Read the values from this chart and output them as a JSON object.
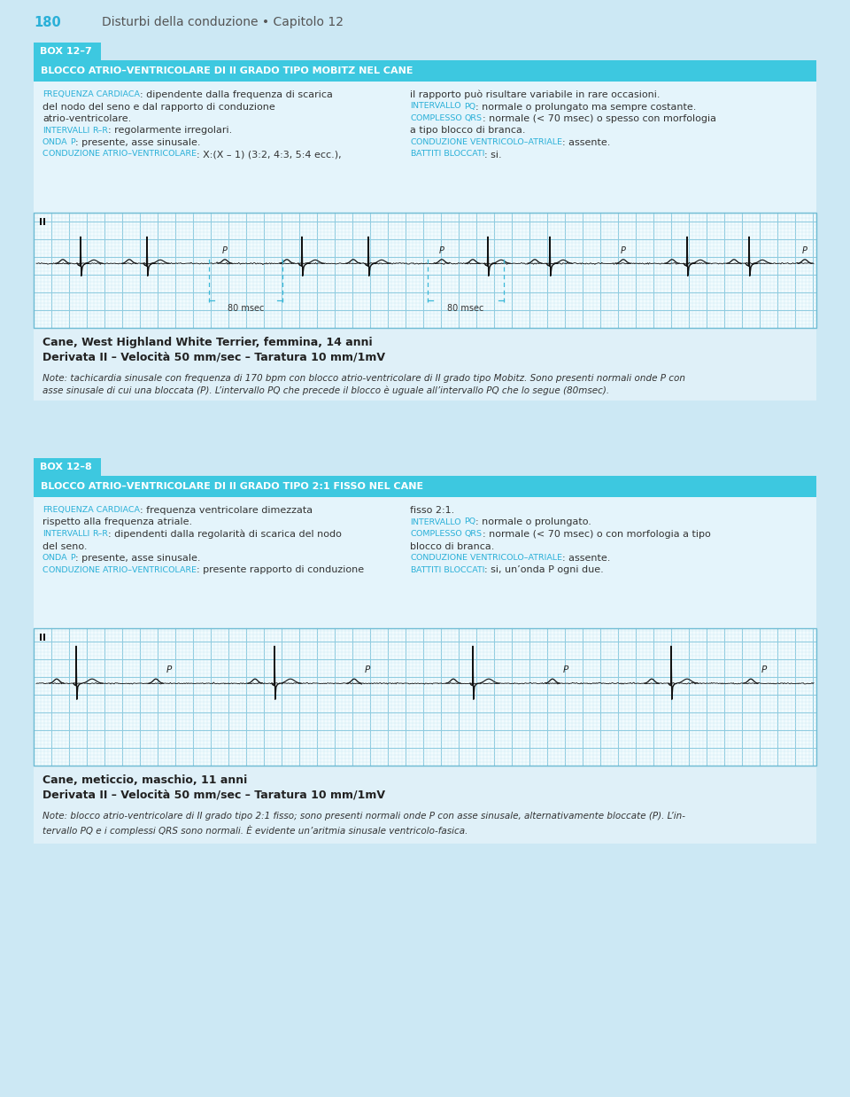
{
  "page_num": "180",
  "page_title": "Disturbi della conduzione • Capitolo 12",
  "bg_color": "#cce8f4",
  "box1": {
    "tag": "BOX 12–7",
    "tag_bg": "#3dc8e0",
    "header": "BLOCCO ATRIO–VENTRICOLARE DI II GRADO TIPO MOBITZ NEL CANE",
    "header_bg": "#3dc8e0",
    "content_bg": "#e4f4fb",
    "left_col_lines": [
      [
        {
          "t": "F",
          "sc": true,
          "c": "#2ab0d8"
        },
        {
          "t": "REQUENZA CARDIACA",
          "sc": true,
          "c": "#2ab0d8"
        },
        {
          "t": ": dipendente dalla frequenza di scarica",
          "c": "#333333"
        }
      ],
      [
        {
          "t": "del nodo del seno e dal rapporto di conduzione",
          "c": "#333333"
        }
      ],
      [
        {
          "t": "atrio-ventricolare.",
          "c": "#333333"
        }
      ],
      [
        {
          "t": "I",
          "sc": true,
          "c": "#2ab0d8"
        },
        {
          "t": "NTERVALLI ",
          "sc": true,
          "c": "#2ab0d8"
        },
        {
          "t": "R–R",
          "sc": true,
          "c": "#2ab0d8"
        },
        {
          "t": ": regolarmente irregolari.",
          "c": "#333333"
        }
      ],
      [
        {
          "t": "O",
          "sc": true,
          "c": "#2ab0d8"
        },
        {
          "t": "NDA ",
          "sc": true,
          "c": "#2ab0d8"
        },
        {
          "t": "P",
          "sc": true,
          "c": "#2ab0d8"
        },
        {
          "t": ": presente, asse sinusale.",
          "c": "#333333"
        }
      ],
      [
        {
          "t": "C",
          "sc": true,
          "c": "#2ab0d8"
        },
        {
          "t": "ONDUZIONE ATRIO–VENTRICOLARE",
          "sc": true,
          "c": "#2ab0d8"
        },
        {
          "t": ": X:(X – 1) (3:2, 4:3, 5:4 ecc.),",
          "c": "#333333"
        }
      ]
    ],
    "right_col_lines": [
      [
        {
          "t": "il rapporto può risultare variabile in rare occasioni.",
          "c": "#333333"
        }
      ],
      [
        {
          "t": "I",
          "sc": true,
          "c": "#2ab0d8"
        },
        {
          "t": "NTERVALLO ",
          "sc": true,
          "c": "#2ab0d8"
        },
        {
          "t": "PQ",
          "sc": true,
          "c": "#2ab0d8"
        },
        {
          "t": ": normale o prolungato ma sempre costante.",
          "c": "#333333"
        }
      ],
      [
        {
          "t": "C",
          "sc": true,
          "c": "#2ab0d8"
        },
        {
          "t": "OMPLESSO ",
          "sc": true,
          "c": "#2ab0d8"
        },
        {
          "t": "QRS",
          "sc": true,
          "c": "#2ab0d8"
        },
        {
          "t": ": normale (< 70 msec) o spesso con morfologia",
          "c": "#333333"
        }
      ],
      [
        {
          "t": "a tipo blocco di branca.",
          "c": "#333333"
        }
      ],
      [
        {
          "t": "C",
          "sc": true,
          "c": "#2ab0d8"
        },
        {
          "t": "ONDUZIONE VENTRICOLO–ATRIALE",
          "sc": true,
          "c": "#2ab0d8"
        },
        {
          "t": ": assente.",
          "c": "#333333"
        }
      ],
      [
        {
          "t": "B",
          "sc": true,
          "c": "#2ab0d8"
        },
        {
          "t": "ATTITI BLOCCATI",
          "sc": true,
          "c": "#2ab0d8"
        },
        {
          "t": ": si.",
          "c": "#333333"
        }
      ]
    ],
    "ecg_label": "II",
    "measure1": "80 msec",
    "measure2": "80 msec",
    "caption_line1": "Cane, West Highland White Terrier, femmina, 14 anni",
    "caption_line2": "Derivata II – Velocità 50 mm/sec – Taratura 10 mm/1mV",
    "note_lines": [
      "Note: tachicardia sinusale con frequenza di 170 bpm con blocco atrio-ventricolare di II grado tipo Mobitz. Sono presenti normali onde P con",
      "asse sinusale di cui una bloccata (P). L’intervallo PQ che precede il blocco è uguale all’intervallo PQ che lo segue (80msec)."
    ]
  },
  "box2": {
    "tag": "BOX 12–8",
    "tag_bg": "#3dc8e0",
    "header": "BLOCCO ATRIO–VENTRICOLARE DI II GRADO TIPO 2:1 FISSO NEL CANE",
    "header_bg": "#3dc8e0",
    "content_bg": "#e4f4fb",
    "left_col_lines": [
      [
        {
          "t": "F",
          "sc": true,
          "c": "#2ab0d8"
        },
        {
          "t": "REQUENZA CARDIACA",
          "sc": true,
          "c": "#2ab0d8"
        },
        {
          "t": ": frequenza ventricolare dimezzata",
          "c": "#333333"
        }
      ],
      [
        {
          "t": "rispetto alla frequenza atriale.",
          "c": "#333333"
        }
      ],
      [
        {
          "t": "I",
          "sc": true,
          "c": "#2ab0d8"
        },
        {
          "t": "NTERVALLI ",
          "sc": true,
          "c": "#2ab0d8"
        },
        {
          "t": "R–R",
          "sc": true,
          "c": "#2ab0d8"
        },
        {
          "t": ": dipendenti dalla regolarità di scarica del nodo",
          "c": "#333333"
        }
      ],
      [
        {
          "t": "del seno.",
          "c": "#333333"
        }
      ],
      [
        {
          "t": "O",
          "sc": true,
          "c": "#2ab0d8"
        },
        {
          "t": "NDA ",
          "sc": true,
          "c": "#2ab0d8"
        },
        {
          "t": "P",
          "sc": true,
          "c": "#2ab0d8"
        },
        {
          "t": ": presente, asse sinusale.",
          "c": "#333333"
        }
      ],
      [
        {
          "t": "C",
          "sc": true,
          "c": "#2ab0d8"
        },
        {
          "t": "ONDUZIONE ATRIO–VENTRICOLARE",
          "sc": true,
          "c": "#2ab0d8"
        },
        {
          "t": ": presente rapporto di conduzione",
          "c": "#333333"
        }
      ]
    ],
    "right_col_lines": [
      [
        {
          "t": "fisso 2:1.",
          "c": "#333333"
        }
      ],
      [
        {
          "t": "I",
          "sc": true,
          "c": "#2ab0d8"
        },
        {
          "t": "NTERVALLO ",
          "sc": true,
          "c": "#2ab0d8"
        },
        {
          "t": "PQ",
          "sc": true,
          "c": "#2ab0d8"
        },
        {
          "t": ": normale o prolungato.",
          "c": "#333333"
        }
      ],
      [
        {
          "t": "C",
          "sc": true,
          "c": "#2ab0d8"
        },
        {
          "t": "OMPLESSO ",
          "sc": true,
          "c": "#2ab0d8"
        },
        {
          "t": "QRS",
          "sc": true,
          "c": "#2ab0d8"
        },
        {
          "t": ": normale (< 70 msec) o con morfologia a tipo",
          "c": "#333333"
        }
      ],
      [
        {
          "t": "blocco di branca.",
          "c": "#333333"
        }
      ],
      [
        {
          "t": "C",
          "sc": true,
          "c": "#2ab0d8"
        },
        {
          "t": "ONDUZIONE VENTRICOLO–ATRIALE",
          "sc": true,
          "c": "#2ab0d8"
        },
        {
          "t": ": assente.",
          "c": "#333333"
        }
      ],
      [
        {
          "t": "B",
          "sc": true,
          "c": "#2ab0d8"
        },
        {
          "t": "ATTITI BLOCCATI",
          "sc": true,
          "c": "#2ab0d8"
        },
        {
          "t": ": si, un’onda P ogni due.",
          "c": "#333333"
        }
      ]
    ],
    "ecg_label": "II",
    "caption_line1": "Cane, meticcio, maschio, 11 anni",
    "caption_line2": "Derivata II – Velocità 50 mm/sec – Taratura 10 mm/1mV",
    "note_lines": [
      "Note: blocco atrio-ventricolare di II grado tipo 2:1 fisso; sono presenti normali onde P con asse sinusale, alternativamente bloccate (P). L’in-",
      "tervallo PQ e i complessi QRS sono normali. È evidente un’aritmia sinusale ventricolo-fasica."
    ]
  }
}
